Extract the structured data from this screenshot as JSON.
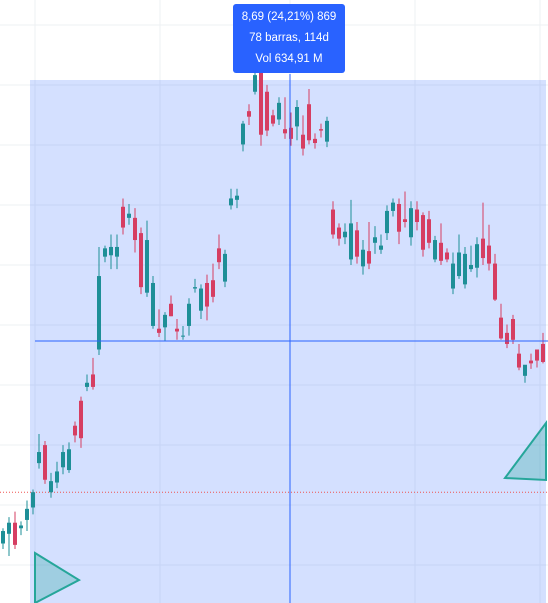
{
  "measure": {
    "line1": "8,69 (24,21%) 869",
    "line2": "78 barras, 114d",
    "line3": "Vol 634,91 M"
  },
  "colors": {
    "up": "#26a69a",
    "down": "#ef5350",
    "upCandle": "#1e8f97",
    "downCandle": "#d63e62",
    "measureFill": "#2962ff",
    "measureFillOpacity": 0.2,
    "grid": "#eef0f3",
    "crosshair": "#2962ff",
    "priceLine": "#ef5350",
    "handle": "#26a69a"
  },
  "icons": [
    "triangle-handle-start-icon",
    "triangle-handle-end-icon"
  ],
  "chart_data": {
    "type": "candlestick",
    "title": "",
    "xlabel": "",
    "ylabel": "",
    "grid": true,
    "ylim": [
      34,
      76
    ],
    "x": [
      1,
      2,
      3,
      4,
      5,
      6,
      7,
      8,
      9,
      10,
      11,
      12,
      13,
      14,
      15,
      16,
      17,
      18,
      19,
      20,
      21,
      22,
      23,
      24,
      25,
      26,
      27,
      28,
      29,
      30,
      31,
      32,
      33,
      34,
      35,
      36,
      37,
      38,
      39,
      40,
      41,
      42,
      43,
      44,
      45,
      46,
      47,
      48,
      49,
      50,
      51,
      52,
      53,
      54,
      55,
      56,
      57,
      58,
      59,
      60,
      61,
      62,
      63,
      64,
      65,
      66,
      67,
      68,
      69,
      70,
      71,
      72,
      73,
      74,
      75,
      76,
      77,
      78,
      79,
      80,
      81,
      82,
      83,
      84,
      85,
      86,
      87,
      88,
      89,
      90,
      91
    ],
    "open": [
      37.5,
      38.2,
      39.0,
      38.6,
      39.2,
      40.1,
      43.3,
      44.6,
      41.2,
      41.9,
      43.0,
      42.8,
      46.0,
      47.8,
      48.8,
      49.7,
      51.5,
      58.2,
      58.3,
      58.2,
      61.8,
      61.0,
      61.0,
      59.9,
      55.6,
      53.2,
      53.0,
      53.1,
      54.8,
      53.0,
      52.5,
      53.2,
      55.9,
      54.3,
      56.3,
      56.5,
      58.8,
      56.4,
      61.9,
      62.3,
      66.3,
      68.7,
      70.1,
      72.9,
      70.1,
      68.4,
      68.1,
      67.4,
      67.5,
      67.6,
      67.0,
      69.2,
      66.7,
      67.4,
      66.5,
      61.6,
      60.3,
      59.6,
      58.0,
      60.1,
      57.5,
      58.6,
      59.2,
      58.7,
      59.9,
      61.5,
      62.0,
      60.9,
      59.6,
      61.6,
      61.2,
      60.9,
      58.0,
      59.2,
      58.5,
      55.9,
      56.8,
      56.2,
      57.3,
      57.4,
      59.5,
      59.0,
      57.7,
      53.8,
      52.7,
      53.7,
      51.2,
      49.6,
      50.7,
      51.5,
      51.9
    ],
    "close": [
      38.4,
      39.0,
      37.4,
      38.8,
      40.0,
      41.2,
      44.1,
      42.1,
      42.0,
      42.7,
      44.1,
      44.3,
      45.3,
      45.1,
      49.1,
      48.8,
      56.8,
      58.8,
      58.9,
      58.9,
      60.3,
      61.3,
      59.4,
      56.0,
      59.4,
      56.3,
      52.7,
      54.0,
      53.9,
      52.8,
      52.5,
      54.8,
      56.0,
      55.9,
      54.6,
      55.3,
      57.8,
      58.4,
      62.4,
      62.6,
      67.8,
      68.3,
      71.3,
      67.0,
      67.3,
      67.8,
      69.3,
      67.1,
      66.7,
      69.0,
      66.0,
      66.6,
      66.4,
      67.3,
      68.0,
      59.8,
      59.5,
      60.0,
      60.6,
      58.2,
      58.7,
      57.7,
      59.6,
      59.0,
      61.5,
      62.1,
      60.0,
      60.7,
      61.7,
      60.7,
      58.7,
      59.2,
      59.4,
      57.9,
      58.0,
      57.7,
      58.5,
      58.4,
      57.6,
      59.1,
      58.1,
      57.7,
      55.1,
      52.3,
      51.9,
      52.2,
      50.2,
      50.4,
      50.5,
      50.7,
      50.6
    ],
    "high": [
      38.6,
      39.4,
      39.8,
      39.1,
      40.6,
      41.4,
      45.4,
      44.9,
      42.6,
      43.4,
      44.6,
      44.8,
      46.3,
      48.1,
      49.7,
      50.9,
      58.9,
      59.0,
      59.8,
      59.8,
      62.4,
      62.0,
      61.7,
      60.3,
      60.8,
      56.8,
      54.4,
      54.2,
      55.4,
      53.7,
      53.2,
      55.2,
      56.6,
      56.2,
      56.9,
      57.7,
      59.8,
      58.7,
      63.1,
      63.1,
      68.0,
      69.2,
      71.8,
      73.0,
      70.6,
      68.8,
      69.7,
      69.7,
      68.6,
      69.5,
      68.4,
      70.3,
      67.1,
      67.8,
      68.3,
      62.2,
      60.6,
      60.6,
      62.3,
      60.7,
      59.4,
      60.7,
      60.4,
      59.8,
      61.9,
      62.4,
      62.4,
      62.9,
      62.2,
      62.2,
      61.4,
      61.5,
      59.7,
      60.6,
      58.8,
      58.5,
      59.8,
      58.9,
      59.0,
      59.6,
      62.1,
      60.5,
      58.4,
      54.8,
      53.3,
      54.0,
      51.9,
      50.2,
      51.2,
      51.5,
      52.7
    ],
    "low": [
      37.1,
      36.6,
      37.1,
      38.1,
      38.4,
      39.6,
      42.9,
      41.8,
      40.8,
      41.5,
      42.5,
      42.6,
      44.8,
      44.4,
      48.5,
      48.6,
      51.1,
      57.8,
      57.3,
      57.3,
      59.8,
      60.5,
      58.5,
      55.5,
      55.3,
      53.0,
      52.4,
      52.1,
      53.9,
      52.2,
      52.2,
      52.5,
      55.6,
      53.7,
      53.6,
      54.9,
      57.3,
      56.0,
      61.6,
      61.7,
      65.8,
      67.7,
      69.9,
      66.2,
      66.9,
      67.6,
      67.7,
      66.7,
      66.2,
      66.6,
      65.5,
      66.3,
      66.0,
      66.8,
      66.1,
      59.5,
      59.0,
      59.1,
      57.6,
      57.7,
      56.9,
      57.3,
      58.4,
      58.4,
      59.4,
      61.1,
      59.1,
      60.3,
      59.0,
      60.1,
      58.2,
      58.8,
      57.8,
      57.6,
      57.8,
      55.5,
      56.6,
      55.9,
      57.1,
      56.7,
      57.6,
      57.2,
      55.0,
      52.2,
      51.6,
      51.9,
      50.0,
      49.1,
      50.1,
      50.2,
      50.5
    ]
  }
}
